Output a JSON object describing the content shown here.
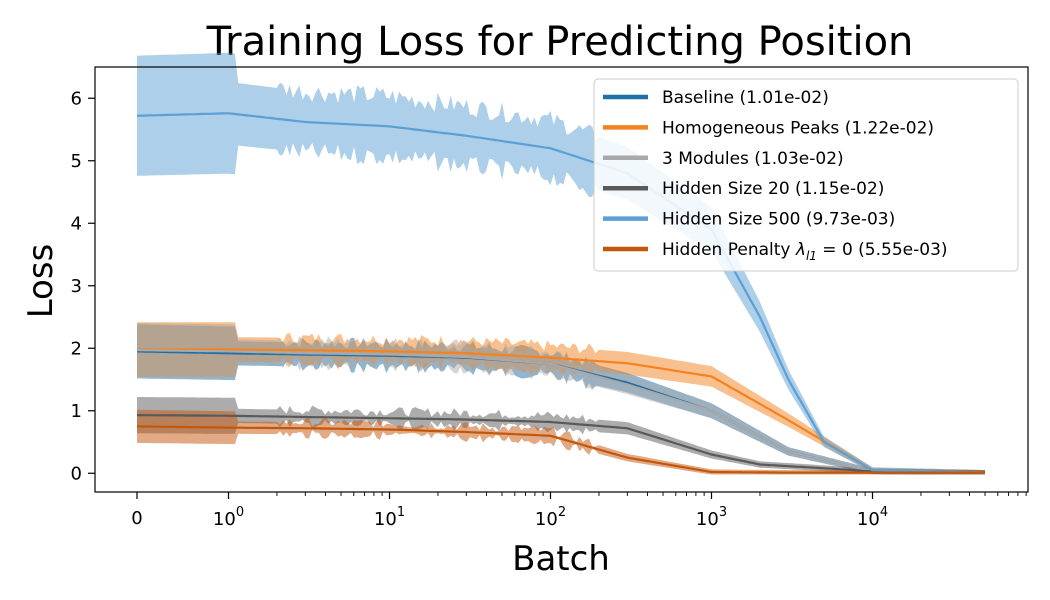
{
  "chart_data": {
    "type": "line",
    "title": "Training Loss for Predicting Position",
    "xlabel": "Batch",
    "ylabel": "Loss",
    "x_scale": "symlog",
    "xlim": [
      -0.3,
      90000
    ],
    "ylim": [
      -0.3,
      6.5
    ],
    "x_ticks": [
      {
        "value": 0,
        "label": "0"
      },
      {
        "value": 1,
        "base": "10",
        "exp": "0"
      },
      {
        "value": 10,
        "base": "10",
        "exp": "1"
      },
      {
        "value": 100,
        "base": "10",
        "exp": "2"
      },
      {
        "value": 1000,
        "base": "10",
        "exp": "3"
      },
      {
        "value": 10000,
        "base": "10",
        "exp": "4"
      }
    ],
    "y_ticks": [
      0,
      1,
      2,
      3,
      4,
      5,
      6
    ],
    "grid": false,
    "legend_position": "top-right",
    "series": [
      {
        "name": "Baseline (1.01e-02)",
        "color": "#1f6fa8",
        "x": [
          0,
          1,
          3,
          10,
          30,
          100,
          300,
          1000,
          3000,
          10000,
          50000
        ],
        "y": [
          1.95,
          1.92,
          1.9,
          1.88,
          1.85,
          1.75,
          1.45,
          1.0,
          0.35,
          0.03,
          0.01
        ]
      },
      {
        "name": "Homogeneous Peaks (1.22e-02)",
        "color": "#f4821f",
        "x": [
          0,
          1,
          3,
          10,
          30,
          100,
          300,
          1000,
          3000,
          10000,
          50000
        ],
        "y": [
          1.98,
          1.98,
          1.97,
          1.95,
          1.92,
          1.85,
          1.76,
          1.55,
          0.85,
          0.05,
          0.01
        ]
      },
      {
        "name": "3 Modules (1.03e-02)",
        "color": "#a9a9a9",
        "x": [
          0,
          1,
          3,
          10,
          30,
          100,
          300,
          1000,
          3000,
          10000,
          50000
        ],
        "y": [
          1.97,
          1.95,
          1.92,
          1.9,
          1.86,
          1.75,
          1.42,
          1.0,
          0.35,
          0.03,
          0.01
        ]
      },
      {
        "name": "Hidden Size 20 (1.15e-02)",
        "color": "#595959",
        "x": [
          0,
          1,
          3,
          10,
          30,
          100,
          300,
          1000,
          2000,
          5000,
          10000,
          50000
        ],
        "y": [
          0.93,
          0.92,
          0.9,
          0.88,
          0.86,
          0.82,
          0.72,
          0.3,
          0.14,
          0.08,
          0.03,
          0.01
        ]
      },
      {
        "name": "Hidden Size 500 (9.73e-03)",
        "color": "#5b9fd4",
        "x": [
          0,
          1,
          3,
          10,
          30,
          100,
          300,
          1000,
          2000,
          3000,
          5000,
          10000,
          50000
        ],
        "y": [
          5.72,
          5.76,
          5.62,
          5.55,
          5.4,
          5.2,
          4.8,
          3.9,
          2.5,
          1.5,
          0.5,
          0.05,
          0.01
        ]
      },
      {
        "name": "Hidden Penalty λl1 = 0 (5.55e-03)",
        "color": "#c4560a",
        "x": [
          0,
          1,
          3,
          10,
          30,
          100,
          300,
          1000,
          3000,
          50000
        ],
        "y": [
          0.75,
          0.73,
          0.72,
          0.7,
          0.66,
          0.6,
          0.25,
          0.02,
          0.01,
          0.01
        ]
      }
    ],
    "legend": [
      {
        "label": "Baseline (1.01e-02)",
        "color": "#1f6fa8"
      },
      {
        "label": "Homogeneous Peaks (1.22e-02)",
        "color": "#f4821f"
      },
      {
        "label": "3 Modules (1.03e-02)",
        "color": "#a9a9a9"
      },
      {
        "label": "Hidden Size 20 (1.15e-02)",
        "color": "#595959"
      },
      {
        "label": "Hidden Size 500 (9.73e-03)",
        "color": "#5b9fd4"
      },
      {
        "label": "Hidden Penalty",
        "math_lambda": "λ",
        "math_sub": "l1",
        "math_rest": " = 0 (5.55e-03)",
        "color": "#c4560a"
      }
    ]
  }
}
